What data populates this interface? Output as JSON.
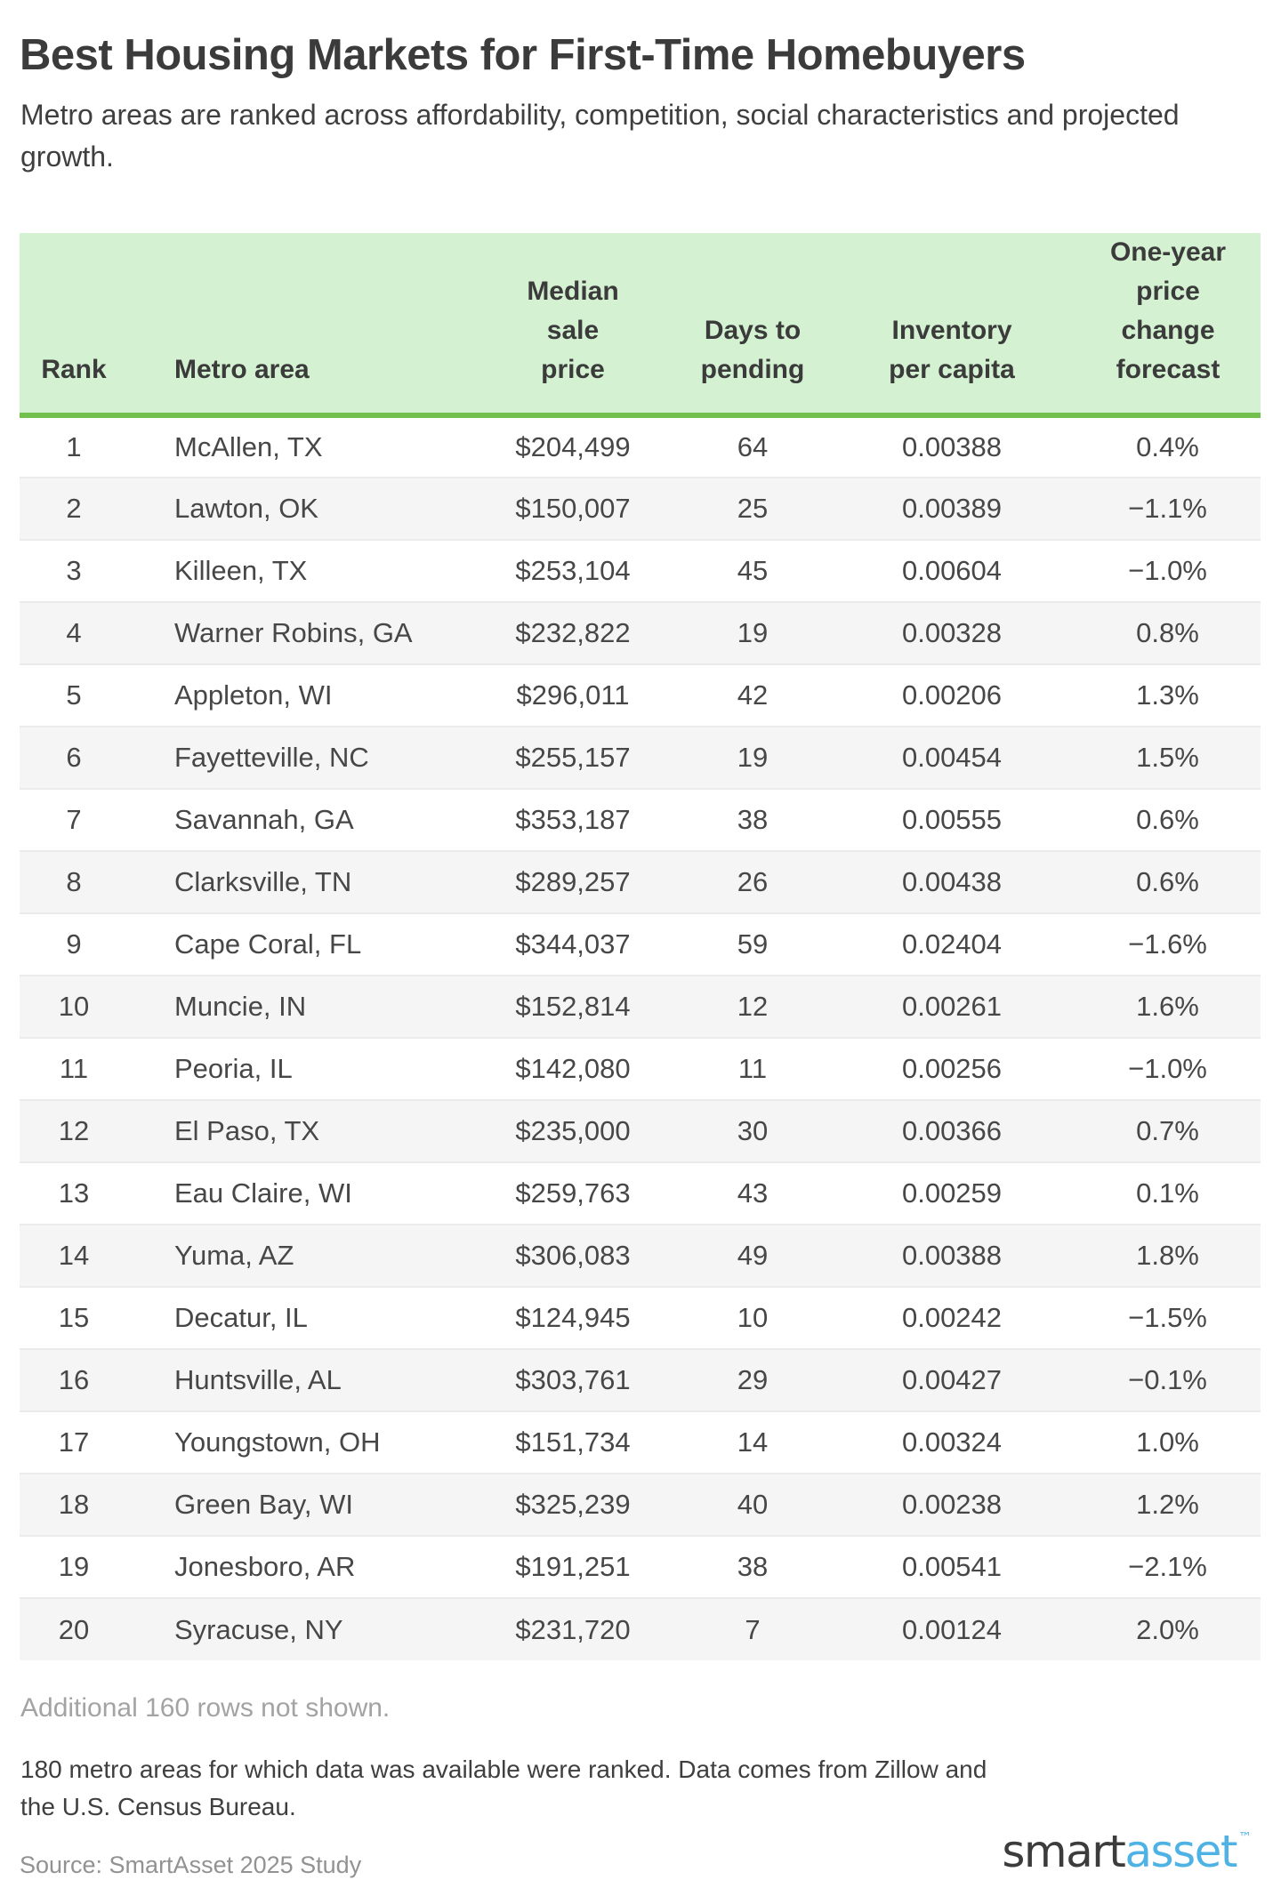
{
  "chart_data": {
    "type": "table",
    "title": "Best Housing Markets for First-Time Homebuyers",
    "subtitle": "Metro areas are ranked across affordability, competition, social characteristics and projected growth.",
    "columns": [
      {
        "label": "Rank",
        "lines": [
          "Rank"
        ],
        "align": "center"
      },
      {
        "label": "Metro area",
        "lines": [
          "Metro area"
        ],
        "align": "left"
      },
      {
        "label": "Median sale price",
        "lines": [
          "Median",
          "sale",
          "price"
        ],
        "align": "center"
      },
      {
        "label": "Days to pending",
        "lines": [
          "Days to",
          "pending"
        ],
        "align": "center"
      },
      {
        "label": "Inventory per capita",
        "lines": [
          "Inventory",
          "per capita"
        ],
        "align": "center"
      },
      {
        "label": "One-year price change forecast",
        "lines": [
          "One-year",
          "price",
          "change",
          "forecast"
        ],
        "align": "center"
      }
    ],
    "rows": [
      {
        "rank": "1",
        "metro": "McAllen, TX",
        "price": "$204,499",
        "days": "64",
        "inventory": "0.00388",
        "forecast": "0.4%"
      },
      {
        "rank": "2",
        "metro": "Lawton, OK",
        "price": "$150,007",
        "days": "25",
        "inventory": "0.00389",
        "forecast": "−1.1%"
      },
      {
        "rank": "3",
        "metro": "Killeen, TX",
        "price": "$253,104",
        "days": "45",
        "inventory": "0.00604",
        "forecast": "−1.0%"
      },
      {
        "rank": "4",
        "metro": "Warner Robins, GA",
        "price": "$232,822",
        "days": "19",
        "inventory": "0.00328",
        "forecast": "0.8%"
      },
      {
        "rank": "5",
        "metro": "Appleton, WI",
        "price": "$296,011",
        "days": "42",
        "inventory": "0.00206",
        "forecast": "1.3%"
      },
      {
        "rank": "6",
        "metro": "Fayetteville, NC",
        "price": "$255,157",
        "days": "19",
        "inventory": "0.00454",
        "forecast": "1.5%"
      },
      {
        "rank": "7",
        "metro": "Savannah, GA",
        "price": "$353,187",
        "days": "38",
        "inventory": "0.00555",
        "forecast": "0.6%"
      },
      {
        "rank": "8",
        "metro": "Clarksville, TN",
        "price": "$289,257",
        "days": "26",
        "inventory": "0.00438",
        "forecast": "0.6%"
      },
      {
        "rank": "9",
        "metro": "Cape Coral, FL",
        "price": "$344,037",
        "days": "59",
        "inventory": "0.02404",
        "forecast": "−1.6%"
      },
      {
        "rank": "10",
        "metro": "Muncie, IN",
        "price": "$152,814",
        "days": "12",
        "inventory": "0.00261",
        "forecast": "1.6%"
      },
      {
        "rank": "11",
        "metro": "Peoria, IL",
        "price": "$142,080",
        "days": "11",
        "inventory": "0.00256",
        "forecast": "−1.0%"
      },
      {
        "rank": "12",
        "metro": "El Paso, TX",
        "price": "$235,000",
        "days": "30",
        "inventory": "0.00366",
        "forecast": "0.7%"
      },
      {
        "rank": "13",
        "metro": "Eau Claire, WI",
        "price": "$259,763",
        "days": "43",
        "inventory": "0.00259",
        "forecast": "0.1%"
      },
      {
        "rank": "14",
        "metro": "Yuma, AZ",
        "price": "$306,083",
        "days": "49",
        "inventory": "0.00388",
        "forecast": "1.8%"
      },
      {
        "rank": "15",
        "metro": "Decatur, IL",
        "price": "$124,945",
        "days": "10",
        "inventory": "0.00242",
        "forecast": "−1.5%"
      },
      {
        "rank": "16",
        "metro": "Huntsville, AL",
        "price": "$303,761",
        "days": "29",
        "inventory": "0.00427",
        "forecast": "−0.1%"
      },
      {
        "rank": "17",
        "metro": "Youngstown, OH",
        "price": "$151,734",
        "days": "14",
        "inventory": "0.00324",
        "forecast": "1.0%"
      },
      {
        "rank": "18",
        "metro": "Green Bay, WI",
        "price": "$325,239",
        "days": "40",
        "inventory": "0.00238",
        "forecast": "1.2%"
      },
      {
        "rank": "19",
        "metro": "Jonesboro, AR",
        "price": "$191,251",
        "days": "38",
        "inventory": "0.00541",
        "forecast": "−2.1%"
      },
      {
        "rank": "20",
        "metro": "Syracuse, NY",
        "price": "$231,720",
        "days": "7",
        "inventory": "0.00124",
        "forecast": "2.0%"
      }
    ],
    "additional_note": "Additional 160 rows not shown.",
    "methodology_lines": [
      "180 metro areas for which data was available were ranked. Data comes from Zillow and",
      "the U.S. Census Bureau."
    ],
    "source": "Source: SmartAsset 2025 Study",
    "logo": {
      "smart": "smart",
      "asset": "asset",
      "tm": "™"
    },
    "colors": {
      "header_bg": "#d4f2d2",
      "header_border": "#72c14e",
      "row_alt_bg": "#f5f5f6",
      "logo_blue": "#4fb2e5"
    },
    "layout_hints": {
      "grid": "row-striped table",
      "legend_position": "none"
    }
  }
}
